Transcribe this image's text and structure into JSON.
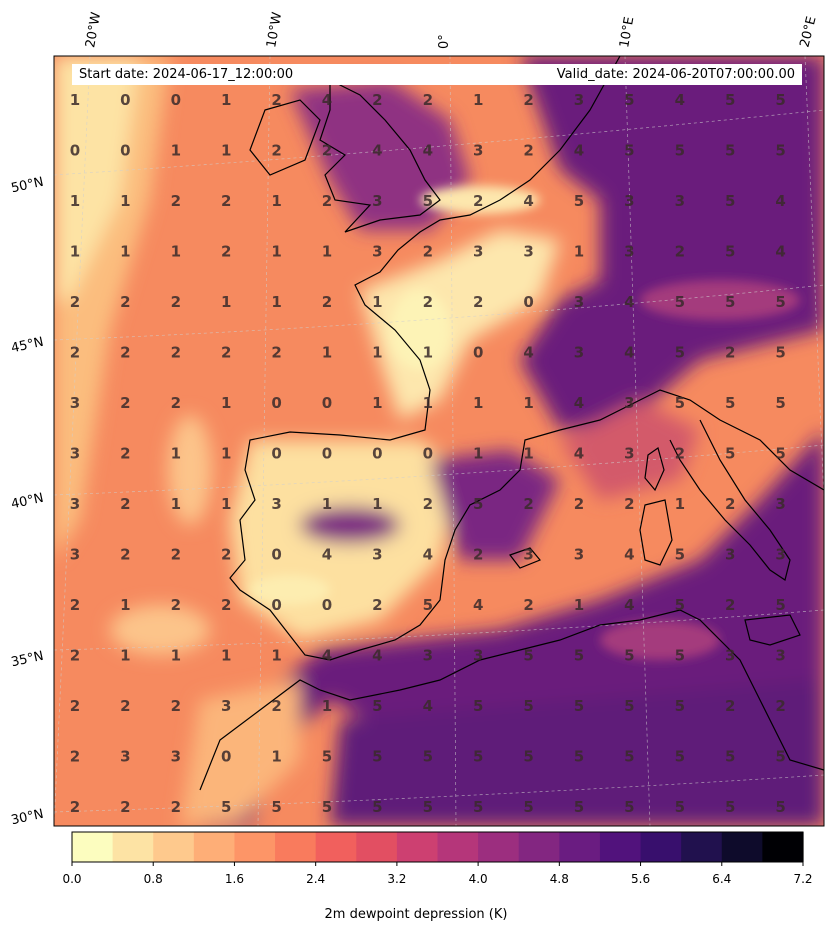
{
  "header": {
    "start_date": "Start date: 2024-06-17_12:00:00",
    "valid_date": "Valid_date: 2024-06-20T07:00:00.00"
  },
  "lon_labels": [
    "20°W",
    "10°W",
    "0°",
    "10°E",
    "20°E"
  ],
  "lat_labels": [
    "50°N",
    "45°N",
    "40°N",
    "35°N",
    "30°N"
  ],
  "colorbar": {
    "label": "2m dewpoint depression (K)",
    "ticks": [
      "0.0",
      "0.8",
      "1.6",
      "2.4",
      "3.2",
      "4.0",
      "4.8",
      "5.6",
      "6.4",
      "7.2"
    ],
    "min": 0.0,
    "max": 7.2,
    "colormap": "magma_r",
    "colors": [
      "#fcfdbf",
      "#fde3a4",
      "#fec98d",
      "#feae77",
      "#fd9567",
      "#f97b5d",
      "#f1605d",
      "#e24f62",
      "#cd4071",
      "#b5367a",
      "#9c2e7f",
      "#832681",
      "#6a1c81",
      "#51127c",
      "#380f6d",
      "#21114e",
      "#0e0b2b",
      "#000004"
    ]
  },
  "grid_values": [
    [
      1,
      0,
      0,
      1,
      2,
      4,
      2,
      2,
      1,
      2,
      3,
      5,
      4,
      5,
      5
    ],
    [
      0,
      0,
      1,
      1,
      2,
      2,
      4,
      4,
      3,
      2,
      4,
      5,
      5,
      5,
      5
    ],
    [
      1,
      1,
      2,
      2,
      1,
      2,
      3,
      5,
      2,
      4,
      5,
      3,
      3,
      5,
      4
    ],
    [
      1,
      1,
      1,
      2,
      1,
      1,
      3,
      2,
      3,
      3,
      1,
      3,
      2,
      5,
      4
    ],
    [
      2,
      2,
      2,
      1,
      1,
      2,
      1,
      2,
      2,
      0,
      3,
      4,
      5,
      5,
      5
    ],
    [
      2,
      2,
      2,
      2,
      2,
      1,
      1,
      1,
      0,
      4,
      3,
      4,
      5,
      2,
      5
    ],
    [
      3,
      2,
      2,
      1,
      0,
      0,
      1,
      1,
      1,
      1,
      4,
      3,
      5,
      5,
      5
    ],
    [
      3,
      2,
      1,
      1,
      0,
      0,
      0,
      0,
      1,
      1,
      4,
      3,
      2,
      5,
      5
    ],
    [
      3,
      2,
      1,
      1,
      3,
      1,
      1,
      2,
      5,
      2,
      2,
      2,
      1,
      2,
      3
    ],
    [
      3,
      2,
      2,
      2,
      0,
      4,
      3,
      4,
      2,
      3,
      3,
      4,
      5,
      3,
      3
    ],
    [
      2,
      1,
      2,
      2,
      0,
      0,
      2,
      5,
      4,
      2,
      1,
      4,
      5,
      2,
      5
    ],
    [
      2,
      1,
      1,
      1,
      1,
      4,
      4,
      3,
      3,
      5,
      5,
      5,
      5,
      3,
      3
    ],
    [
      2,
      2,
      2,
      3,
      2,
      1,
      5,
      4,
      5,
      5,
      5,
      5,
      5,
      2,
      2
    ],
    [
      2,
      3,
      3,
      0,
      1,
      5,
      5,
      5,
      5,
      5,
      5,
      5,
      5,
      5,
      5
    ],
    [
      2,
      2,
      2,
      5,
      5,
      5,
      5,
      5,
      5,
      5,
      5,
      5,
      5,
      5,
      5
    ]
  ]
}
